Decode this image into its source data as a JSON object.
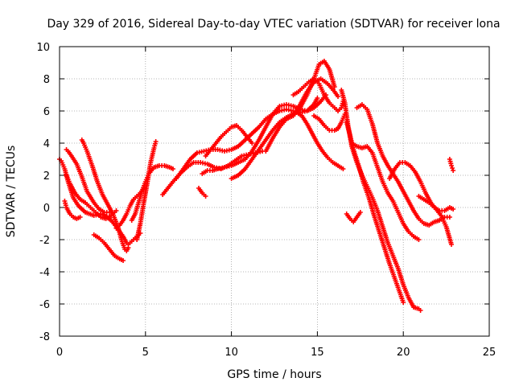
{
  "chart_data": {
    "type": "scatter",
    "title": "Day 329 of 2016, Sidereal Day-to-day VTEC variation (SDTVAR) for receiver lona",
    "xlabel": "GPS time / hours",
    "ylabel": "SDTVAR / TECUs",
    "xlim": [
      0,
      25
    ],
    "ylim": [
      -8,
      10
    ],
    "xticks": [
      "0",
      "5",
      "10",
      "15",
      "20",
      "25"
    ],
    "yticks": [
      "-8",
      "-6",
      "-4",
      "-2",
      "0",
      "2",
      "4",
      "6",
      "8",
      "10"
    ],
    "grid": true,
    "marker": "+",
    "series_color": "#ff0000",
    "series": [
      {
        "name": "trace-1",
        "x": [
          0.0,
          0.1,
          0.3,
          0.5,
          0.8,
          1.1,
          1.5,
          2.0,
          2.5,
          3.0,
          3.3,
          3.7,
          3.9,
          4.0,
          4.2,
          4.4,
          4.6,
          4.7
        ],
        "y": [
          3.0,
          2.9,
          2.4,
          1.6,
          0.6,
          0.1,
          -0.3,
          -0.5,
          -0.4,
          -0.8,
          -1.2,
          -1.8,
          -2.2,
          -2.3,
          -2.1,
          -1.9,
          -1.7,
          -1.6
        ]
      },
      {
        "name": "trace-2",
        "x": [
          0.4,
          0.5,
          0.7,
          1.0,
          1.3,
          1.6,
          2.0,
          2.3,
          2.6,
          2.9
        ],
        "y": [
          3.6,
          3.5,
          3.2,
          2.7,
          1.9,
          1.0,
          0.3,
          -0.1,
          -0.3,
          -0.3
        ]
      },
      {
        "name": "trace-3",
        "x": [
          1.3,
          1.4,
          1.6,
          1.9,
          2.2,
          2.5,
          2.8,
          3.1,
          3.4,
          3.6,
          3.8,
          3.9,
          4.0
        ],
        "y": [
          4.2,
          4.0,
          3.5,
          2.6,
          1.6,
          0.8,
          0.2,
          -0.4,
          -1.2,
          -2.0,
          -2.6,
          -2.7,
          -2.5
        ]
      },
      {
        "name": "trace-4",
        "x": [
          0.4,
          0.6,
          0.9,
          1.2,
          1.5,
          1.8,
          2.1,
          2.4,
          2.7,
          3.0,
          3.3
        ],
        "y": [
          2.0,
          1.5,
          0.9,
          0.5,
          0.3,
          0.0,
          -0.3,
          -0.6,
          -0.7,
          -0.5,
          -0.2
        ]
      },
      {
        "name": "trace-5",
        "x": [
          2.0,
          2.3,
          2.6,
          2.9,
          3.2,
          3.5,
          3.7
        ],
        "y": [
          -1.7,
          -1.9,
          -2.2,
          -2.6,
          -3.0,
          -3.2,
          -3.3
        ]
      },
      {
        "name": "trace-6",
        "x": [
          0.3,
          0.4,
          0.6,
          0.8,
          1.0,
          1.2
        ],
        "y": [
          0.4,
          0.0,
          -0.4,
          -0.6,
          -0.7,
          -0.6
        ]
      },
      {
        "name": "trace-7",
        "x": [
          4.2,
          4.4,
          4.6,
          4.8,
          5.0,
          5.2,
          5.5,
          5.8,
          6.1,
          6.4,
          6.6
        ],
        "y": [
          -0.8,
          -0.4,
          0.3,
          1.0,
          1.6,
          2.1,
          2.5,
          2.6,
          2.6,
          2.5,
          2.4
        ]
      },
      {
        "name": "trace-8",
        "x": [
          4.5,
          4.7,
          4.9,
          5.1,
          5.3,
          5.5,
          5.6
        ],
        "y": [
          -2.0,
          -1.0,
          0.3,
          1.5,
          2.8,
          3.7,
          4.1
        ]
      },
      {
        "name": "trace-9",
        "x": [
          3.3,
          3.5,
          3.7,
          3.9,
          4.1,
          4.3,
          4.5,
          4.7,
          4.9
        ],
        "y": [
          -1.3,
          -1.1,
          -0.8,
          -0.4,
          0.1,
          0.5,
          0.7,
          0.9,
          1.2
        ]
      },
      {
        "name": "trace-10",
        "x": [
          6.0,
          6.3,
          6.6,
          7.0,
          7.4,
          7.8,
          8.2,
          8.6,
          9.0,
          9.4,
          9.8,
          10.2,
          10.6,
          11.0,
          11.4,
          11.8
        ],
        "y": [
          0.8,
          1.2,
          1.6,
          2.1,
          2.5,
          2.8,
          2.8,
          2.7,
          2.5,
          2.4,
          2.6,
          2.9,
          3.2,
          3.3,
          3.4,
          3.5
        ]
      },
      {
        "name": "trace-11",
        "x": [
          6.8,
          7.2,
          7.6,
          8.0,
          8.4,
          8.8,
          9.2,
          9.6,
          10.0,
          10.4,
          10.8,
          11.2,
          11.6,
          12.0,
          12.4,
          12.8,
          13.2,
          13.6,
          14.0,
          14.4,
          14.8,
          15.2,
          15.5
        ],
        "y": [
          1.8,
          2.4,
          3.0,
          3.4,
          3.5,
          3.6,
          3.6,
          3.5,
          3.6,
          3.8,
          4.2,
          4.6,
          5.0,
          5.5,
          5.8,
          6.0,
          6.1,
          6.0,
          5.9,
          6.0,
          6.2,
          6.6,
          7.0
        ]
      },
      {
        "name": "trace-12",
        "x": [
          8.5,
          8.8,
          9.1,
          9.4,
          9.7,
          10.0,
          10.3,
          10.6,
          10.9,
          11.2
        ],
        "y": [
          3.2,
          3.6,
          4.0,
          4.4,
          4.7,
          5.0,
          5.1,
          4.8,
          4.4,
          4.0
        ]
      },
      {
        "name": "trace-13",
        "x": [
          8.3,
          8.6,
          8.9,
          9.2,
          9.6,
          10.0,
          10.4,
          10.8,
          11.2,
          11.6,
          12.0,
          12.4,
          12.8,
          13.2,
          13.6,
          14.0,
          14.4,
          14.8,
          15.0
        ],
        "y": [
          2.1,
          2.3,
          2.3,
          2.4,
          2.5,
          2.6,
          2.8,
          3.0,
          3.5,
          4.2,
          5.0,
          5.8,
          6.3,
          6.4,
          6.3,
          6.1,
          6.0,
          6.4,
          6.8
        ]
      },
      {
        "name": "trace-14",
        "x": [
          10.0,
          10.4,
          10.8,
          11.2,
          11.6,
          12.0,
          12.4,
          12.8,
          13.2,
          13.6,
          14.0,
          14.4,
          14.8,
          15.1,
          15.4,
          15.7,
          16.0
        ],
        "y": [
          1.8,
          2.0,
          2.4,
          3.0,
          3.6,
          4.2,
          4.8,
          5.3,
          5.6,
          5.8,
          6.2,
          7.0,
          8.0,
          8.9,
          9.1,
          8.6,
          7.5
        ]
      },
      {
        "name": "trace-15",
        "x": [
          12.0,
          12.4,
          12.8,
          13.2,
          13.6,
          14.0,
          14.4,
          14.8,
          15.2,
          15.6,
          16.0,
          16.2
        ],
        "y": [
          3.5,
          4.3,
          5.0,
          5.5,
          5.7,
          6.4,
          7.2,
          7.8,
          8.0,
          7.7,
          7.2,
          6.9
        ]
      },
      {
        "name": "trace-16",
        "x": [
          13.6,
          13.9,
          14.2,
          14.5,
          14.8,
          15.1,
          15.4,
          15.7,
          16.0,
          16.2,
          16.4,
          16.5
        ],
        "y": [
          7.0,
          7.2,
          7.5,
          7.8,
          8.0,
          7.7,
          7.0,
          6.5,
          6.2,
          6.0,
          6.2,
          6.6
        ]
      },
      {
        "name": "trace-17",
        "x": [
          13.5,
          13.8,
          14.1,
          14.4,
          14.7,
          15.0,
          15.3,
          15.6,
          15.9,
          16.2,
          16.5
        ],
        "y": [
          5.8,
          5.9,
          5.7,
          5.2,
          4.6,
          4.0,
          3.5,
          3.1,
          2.8,
          2.6,
          2.4
        ]
      },
      {
        "name": "trace-18",
        "x": [
          14.8,
          15.1,
          15.4,
          15.7,
          16.0,
          16.2,
          16.4,
          16.6
        ],
        "y": [
          5.7,
          5.5,
          5.1,
          4.8,
          4.8,
          4.9,
          5.3,
          5.8
        ]
      },
      {
        "name": "trace-19",
        "x": [
          16.4,
          16.6,
          16.8,
          17.0,
          17.3,
          17.6,
          17.9,
          18.2,
          18.5,
          18.8,
          19.1,
          19.4,
          19.7,
          20.0,
          20.3,
          20.6,
          20.9,
          21.0
        ],
        "y": [
          7.3,
          6.5,
          5.0,
          3.8,
          2.8,
          2.0,
          1.3,
          0.6,
          -0.2,
          -1.2,
          -2.2,
          -3.0,
          -3.8,
          -4.8,
          -5.6,
          -6.2,
          -6.3,
          -6.4
        ]
      },
      {
        "name": "trace-20",
        "x": [
          16.7,
          16.9,
          17.1,
          17.4,
          17.7,
          18.0,
          18.3,
          18.6,
          18.9,
          19.2,
          19.5,
          19.8,
          20.0
        ],
        "y": [
          5.3,
          4.5,
          3.6,
          2.6,
          1.5,
          0.6,
          -0.5,
          -1.5,
          -2.5,
          -3.5,
          -4.4,
          -5.3,
          -5.9
        ]
      },
      {
        "name": "trace-21",
        "x": [
          17.0,
          17.3,
          17.6,
          17.9,
          18.2,
          18.5,
          18.8,
          19.1,
          19.4,
          19.7,
          20.0,
          20.3,
          20.6,
          20.9
        ],
        "y": [
          4.0,
          3.8,
          3.7,
          3.8,
          3.4,
          2.5,
          1.6,
          0.9,
          0.4,
          -0.3,
          -1.0,
          -1.5,
          -1.8,
          -2.0
        ]
      },
      {
        "name": "trace-22",
        "x": [
          17.3,
          17.6,
          17.9,
          18.2,
          18.5,
          18.8,
          19.1,
          19.4,
          19.7,
          20.0,
          20.3,
          20.6,
          20.9,
          21.2,
          21.5,
          21.8,
          22.1,
          22.4,
          22.7
        ],
        "y": [
          6.2,
          6.4,
          6.1,
          5.2,
          4.0,
          3.2,
          2.6,
          2.1,
          1.6,
          1.0,
          0.4,
          -0.2,
          -0.7,
          -1.0,
          -1.1,
          -0.9,
          -0.8,
          -0.6,
          -0.6
        ]
      },
      {
        "name": "trace-23",
        "x": [
          19.2,
          19.5,
          19.8,
          20.1,
          20.4,
          20.7,
          21.0,
          21.3,
          21.6,
          21.9,
          22.2,
          22.5,
          22.8
        ],
        "y": [
          1.8,
          2.4,
          2.8,
          2.8,
          2.6,
          2.2,
          1.6,
          0.9,
          0.3,
          -0.1,
          -0.5,
          -1.2,
          -2.3
        ]
      },
      {
        "name": "trace-24",
        "x": [
          20.9,
          21.2,
          21.5,
          21.8,
          22.1,
          22.4,
          22.7,
          22.9
        ],
        "y": [
          0.7,
          0.5,
          0.3,
          0.0,
          -0.2,
          -0.2,
          0.0,
          -0.1
        ]
      },
      {
        "name": "trace-25",
        "x": [
          16.7,
          16.9,
          17.1,
          17.3,
          17.5
        ],
        "y": [
          -0.4,
          -0.7,
          -0.9,
          -0.6,
          -0.3
        ]
      },
      {
        "name": "trace-26",
        "x": [
          22.7,
          22.8,
          22.9
        ],
        "y": [
          3.0,
          2.6,
          2.3
        ]
      },
      {
        "name": "trace-27",
        "x": [
          8.1,
          8.3,
          8.5
        ],
        "y": [
          1.2,
          0.9,
          0.7
        ]
      }
    ]
  }
}
